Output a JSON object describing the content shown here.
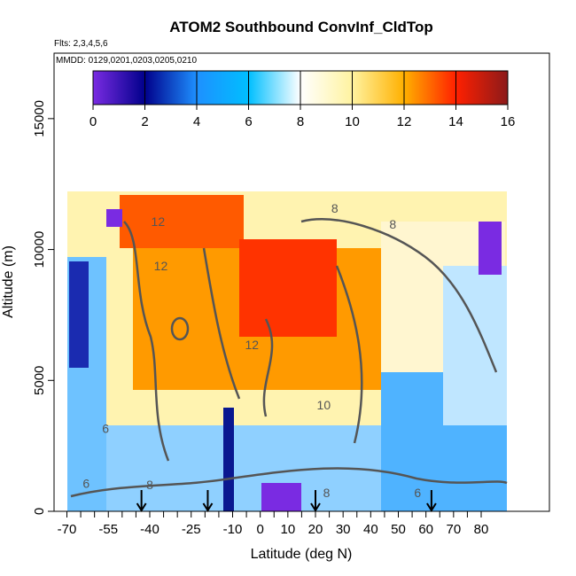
{
  "chart_data": {
    "type": "heatmap",
    "title": "ATOM2 Southbound ConvInf_CldTop",
    "flights_note": "Flts: 2,3,4,5,6",
    "dates_note": "MMDD: 0129,0201,0203,0205,0210",
    "xlabel": "Latitude (deg N)",
    "ylabel": "Altitude (m)",
    "xlim": [
      -70,
      80
    ],
    "ylim": [
      0,
      17500
    ],
    "x_ticks": [
      -70,
      -55,
      -40,
      -25,
      -10,
      0,
      10,
      20,
      30,
      40,
      50,
      60,
      70,
      80
    ],
    "x_tick_labels": [
      "-70",
      "-55",
      "-40",
      "-25",
      "-10",
      "0",
      "10",
      "20",
      "30",
      "40",
      "50",
      "60",
      "70",
      "80"
    ],
    "x_minor_ticks": [
      -65,
      -60,
      -50,
      -45,
      -35,
      -30,
      -20,
      -15,
      -5,
      5,
      15,
      25,
      35,
      45,
      55,
      65,
      75
    ],
    "y_ticks": [
      0,
      5000,
      10000,
      15000
    ],
    "y_tick_labels": [
      "0",
      "5000",
      "10000",
      "15000"
    ],
    "colorbar": {
      "min": 0,
      "max": 16,
      "ticks": [
        0,
        2,
        4,
        6,
        8,
        10,
        12,
        14,
        16
      ],
      "tick_labels": [
        "0",
        "2",
        "4",
        "6",
        "8",
        "10",
        "12",
        "14",
        "16"
      ],
      "colors": [
        "#7a2be2",
        "#00008b",
        "#1e90ff",
        "#00bfff",
        "#ffffff",
        "#fff3a0",
        "#ffb000",
        "#ff2000",
        "#8b1a1a"
      ]
    },
    "contour_labels": [
      {
        "text": "12",
        "x": -37,
        "y": 10900
      },
      {
        "text": "12",
        "x": -36,
        "y": 9200
      },
      {
        "text": "8",
        "x": 27,
        "y": 11400
      },
      {
        "text": "8",
        "x": 48,
        "y": 10800
      },
      {
        "text": "12",
        "x": -3,
        "y": 6200
      },
      {
        "text": "10",
        "x": 23,
        "y": 3900
      },
      {
        "text": "6",
        "x": -56,
        "y": 3000
      },
      {
        "text": "6",
        "x": -63,
        "y": 900
      },
      {
        "text": "8",
        "x": -40,
        "y": 850
      },
      {
        "text": "8",
        "x": 24,
        "y": 550
      },
      {
        "text": "6",
        "x": 57,
        "y": 550
      }
    ],
    "arrow_markers_x": [
      -43,
      -19,
      20,
      62
    ],
    "data_region": {
      "x_range": [
        -70,
        72
      ],
      "y_range": [
        0,
        12500
      ]
    }
  }
}
